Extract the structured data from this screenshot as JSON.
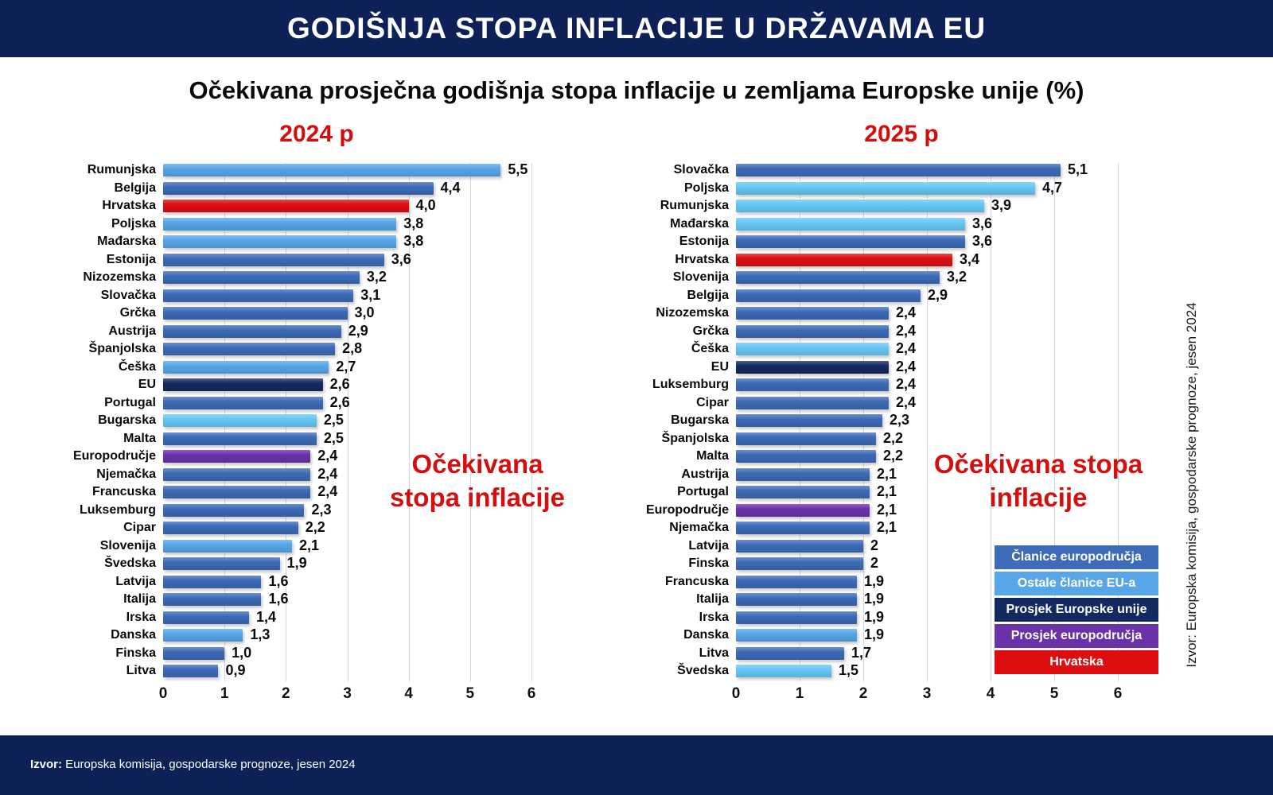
{
  "header": {
    "title": "GODIŠNJA STOPA INFLACIJE U DRŽAVAMA EU",
    "background": "#0e2157"
  },
  "subtitle": "Očekivana prosječna godišnja stopa inflacije u zemljama Europske unije (%)",
  "panels": [
    {
      "year_label": "2024 p",
      "annotation_line1": "Očekivana",
      "annotation_line2": "stopa inflacije"
    },
    {
      "year_label": "2025 p",
      "annotation_line1": "Očekivana stopa",
      "annotation_line2": "inflacije"
    }
  ],
  "palette": {
    "medium": "#3d6bb7",
    "light": "#57a6e8",
    "cyan": "#66c8f4",
    "navy": "#132a60",
    "purple": "#6b31a9",
    "red": "#de0e10"
  },
  "legend": {
    "items": [
      {
        "label": "Članice europodručja",
        "color": "#3d6bb7"
      },
      {
        "label": "Ostale članice EU-a",
        "color": "#57a6e8"
      },
      {
        "label": "Prosjek Europske unije",
        "color": "#132a60"
      },
      {
        "label": "Prosjek europodručja",
        "color": "#6b31a9"
      },
      {
        "label": "Hrvatska",
        "color": "#de0e10"
      }
    ]
  },
  "axis": {
    "ticks": [
      "0",
      "1",
      "2",
      "3",
      "4",
      "5",
      "6"
    ],
    "max": 6
  },
  "annotation_color": "#d40f0f",
  "source_vertical": "Izvor: Europska komisija, gospodarske prognoze, jesen 2024",
  "footer": {
    "source_bold": "Izvor:",
    "source_rest": " Europska komisija, gospodarske prognoze, jesen 2024"
  },
  "chart_data": [
    {
      "type": "bar",
      "orientation": "horizontal",
      "title": "2024 p",
      "xlabel": "",
      "ylabel": "",
      "xlim": [
        0,
        6
      ],
      "grid": true,
      "bars": [
        {
          "label": "Rumunjska",
          "value": 5.5,
          "value_label": "5,5",
          "color": "light"
        },
        {
          "label": "Belgija",
          "value": 4.4,
          "value_label": "4,4",
          "color": "medium"
        },
        {
          "label": "Hrvatska",
          "value": 4.0,
          "value_label": "4,0",
          "color": "red"
        },
        {
          "label": "Poljska",
          "value": 3.8,
          "value_label": "3,8",
          "color": "light"
        },
        {
          "label": "Mađarska",
          "value": 3.8,
          "value_label": "3,8",
          "color": "light"
        },
        {
          "label": "Estonija",
          "value": 3.6,
          "value_label": "3,6",
          "color": "medium"
        },
        {
          "label": "Nizozemska",
          "value": 3.2,
          "value_label": "3,2",
          "color": "medium"
        },
        {
          "label": "Slovačka",
          "value": 3.1,
          "value_label": "3,1",
          "color": "medium"
        },
        {
          "label": "Grčka",
          "value": 3.0,
          "value_label": "3,0",
          "color": "medium"
        },
        {
          "label": "Austrija",
          "value": 2.9,
          "value_label": "2,9",
          "color": "medium"
        },
        {
          "label": "Španjolska",
          "value": 2.8,
          "value_label": "2,8",
          "color": "medium"
        },
        {
          "label": "Češka",
          "value": 2.7,
          "value_label": "2,7",
          "color": "light"
        },
        {
          "label": "EU",
          "value": 2.6,
          "value_label": "2,6",
          "color": "navy"
        },
        {
          "label": "Portugal",
          "value": 2.6,
          "value_label": "2,6",
          "color": "medium"
        },
        {
          "label": "Bugarska",
          "value": 2.5,
          "value_label": "2,5",
          "color": "cyan"
        },
        {
          "label": "Malta",
          "value": 2.5,
          "value_label": "2,5",
          "color": "medium"
        },
        {
          "label": "Europodručje",
          "value": 2.4,
          "value_label": "2,4",
          "color": "purple"
        },
        {
          "label": "Njemačka",
          "value": 2.4,
          "value_label": "2,4",
          "color": "medium"
        },
        {
          "label": "Francuska",
          "value": 2.4,
          "value_label": "2,4",
          "color": "medium"
        },
        {
          "label": "Luksemburg",
          "value": 2.3,
          "value_label": "2,3",
          "color": "medium"
        },
        {
          "label": "Cipar",
          "value": 2.2,
          "value_label": "2,2",
          "color": "medium"
        },
        {
          "label": "Slovenija",
          "value": 2.1,
          "value_label": "2,1",
          "color": "light"
        },
        {
          "label": "Švedska",
          "value": 1.9,
          "value_label": "1,9",
          "color": "medium"
        },
        {
          "label": "Latvija",
          "value": 1.6,
          "value_label": "1,6",
          "color": "medium"
        },
        {
          "label": "Italija",
          "value": 1.6,
          "value_label": "1,6",
          "color": "medium"
        },
        {
          "label": "Irska",
          "value": 1.4,
          "value_label": "1,4",
          "color": "medium"
        },
        {
          "label": "Danska",
          "value": 1.3,
          "value_label": "1,3",
          "color": "light"
        },
        {
          "label": "Finska",
          "value": 1.0,
          "value_label": "1,0",
          "color": "medium"
        },
        {
          "label": "Litva",
          "value": 0.9,
          "value_label": "0,9",
          "color": "medium"
        }
      ]
    },
    {
      "type": "bar",
      "orientation": "horizontal",
      "title": "2025 p",
      "xlabel": "",
      "ylabel": "",
      "xlim": [
        0,
        6
      ],
      "grid": true,
      "bars": [
        {
          "label": "Slovačka",
          "value": 5.1,
          "value_label": "5,1",
          "color": "medium"
        },
        {
          "label": "Poljska",
          "value": 4.7,
          "value_label": "4,7",
          "color": "cyan"
        },
        {
          "label": "Rumunjska",
          "value": 3.9,
          "value_label": "3,9",
          "color": "cyan"
        },
        {
          "label": "Mađarska",
          "value": 3.6,
          "value_label": "3,6",
          "color": "cyan"
        },
        {
          "label": "Estonija",
          "value": 3.6,
          "value_label": "3,6",
          "color": "medium"
        },
        {
          "label": "Hrvatska",
          "value": 3.4,
          "value_label": "3,4",
          "color": "red"
        },
        {
          "label": "Slovenija",
          "value": 3.2,
          "value_label": "3,2",
          "color": "medium"
        },
        {
          "label": "Belgija",
          "value": 2.9,
          "value_label": "2,9",
          "color": "medium"
        },
        {
          "label": "Nizozemska",
          "value": 2.4,
          "value_label": "2,4",
          "color": "medium"
        },
        {
          "label": "Grčka",
          "value": 2.4,
          "value_label": "2,4",
          "color": "medium"
        },
        {
          "label": "Češka",
          "value": 2.4,
          "value_label": "2,4",
          "color": "cyan"
        },
        {
          "label": "EU",
          "value": 2.4,
          "value_label": "2,4",
          "color": "navy"
        },
        {
          "label": "Luksemburg",
          "value": 2.4,
          "value_label": "2,4",
          "color": "medium"
        },
        {
          "label": "Cipar",
          "value": 2.4,
          "value_label": "2,4",
          "color": "medium"
        },
        {
          "label": "Bugarska",
          "value": 2.3,
          "value_label": "2,3",
          "color": "medium"
        },
        {
          "label": "Španjolska",
          "value": 2.2,
          "value_label": "2,2",
          "color": "medium"
        },
        {
          "label": "Malta",
          "value": 2.2,
          "value_label": "2,2",
          "color": "medium"
        },
        {
          "label": "Austrija",
          "value": 2.1,
          "value_label": "2,1",
          "color": "medium"
        },
        {
          "label": "Portugal",
          "value": 2.1,
          "value_label": "2,1",
          "color": "medium"
        },
        {
          "label": "Europodručje",
          "value": 2.1,
          "value_label": "2,1",
          "color": "purple"
        },
        {
          "label": "Njemačka",
          "value": 2.1,
          "value_label": "2,1",
          "color": "medium"
        },
        {
          "label": "Latvija",
          "value": 2.0,
          "value_label": "2",
          "color": "medium"
        },
        {
          "label": "Finska",
          "value": 2.0,
          "value_label": "2",
          "color": "medium"
        },
        {
          "label": "Francuska",
          "value": 1.9,
          "value_label": "1,9",
          "color": "medium"
        },
        {
          "label": "Italija",
          "value": 1.9,
          "value_label": "1,9",
          "color": "medium"
        },
        {
          "label": "Irska",
          "value": 1.9,
          "value_label": "1,9",
          "color": "medium"
        },
        {
          "label": "Danska",
          "value": 1.9,
          "value_label": "1,9",
          "color": "light"
        },
        {
          "label": "Litva",
          "value": 1.7,
          "value_label": "1,7",
          "color": "medium"
        },
        {
          "label": "Švedska",
          "value": 1.5,
          "value_label": "1,5",
          "color": "cyan"
        }
      ]
    }
  ]
}
